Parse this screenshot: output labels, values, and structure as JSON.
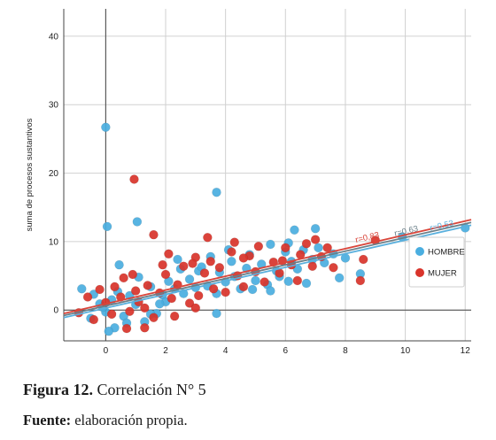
{
  "caption": {
    "figure_label": "Figura 12.",
    "figure_text": " Correlación N° 5",
    "source_label": "Fuente:",
    "source_text": " elaboración propia."
  },
  "colors": {
    "hombre": "#4aaee0",
    "mujer": "#d9342b",
    "hombre_line": "#5ab0dd",
    "mujer_line": "#d9453a",
    "grid": "#d0d0d0",
    "axis": "#444444"
  },
  "chart_data": {
    "type": "scatter",
    "title": "",
    "xlabel": "",
    "ylabel": "suma de procesos sustantivos",
    "xlim": [
      -1.4,
      12.2
    ],
    "ylim": [
      -4.5,
      44
    ],
    "x_ticks": [
      0,
      2,
      4,
      6,
      8,
      10,
      12
    ],
    "y_ticks": [
      0,
      10,
      20,
      30,
      40
    ],
    "grid": true,
    "legend_position": "right",
    "fit_lines": [
      {
        "series": "MUJER",
        "x": [
          -1.4,
          12.2
        ],
        "y": [
          -0.5,
          13.2
        ],
        "label": "r=0,83"
      },
      {
        "series": "ALL",
        "x": [
          -1.4,
          12.2
        ],
        "y": [
          -0.8,
          12.8
        ],
        "label": "r=0,63"
      },
      {
        "series": "HOMBRE",
        "x": [
          -1.4,
          12.2
        ],
        "y": [
          -1.1,
          12.4
        ],
        "label": "r=0,53"
      }
    ],
    "series": [
      {
        "name": "HOMBRE",
        "points": [
          [
            0.0,
            26.7
          ],
          [
            0.05,
            12.2
          ],
          [
            1.05,
            12.9
          ],
          [
            3.7,
            17.2
          ],
          [
            6.3,
            11.7
          ],
          [
            7.0,
            11.9
          ],
          [
            9.9,
            10.7
          ],
          [
            12.0,
            12.0
          ],
          [
            -0.8,
            3.1
          ],
          [
            -0.4,
            2.3
          ],
          [
            -0.2,
            0.9
          ],
          [
            0.0,
            -0.3
          ],
          [
            0.2,
            1.5
          ],
          [
            0.4,
            2.7
          ],
          [
            0.45,
            6.6
          ],
          [
            0.6,
            -0.9
          ],
          [
            0.8,
            2.1
          ],
          [
            1.0,
            0.8
          ],
          [
            1.1,
            4.8
          ],
          [
            1.3,
            -1.7
          ],
          [
            1.5,
            3.4
          ],
          [
            1.7,
            -0.5
          ],
          [
            1.9,
            2.2
          ],
          [
            2.1,
            4.2
          ],
          [
            2.3,
            3.1
          ],
          [
            2.5,
            6.0
          ],
          [
            2.6,
            2.4
          ],
          [
            2.8,
            4.5
          ],
          [
            3.0,
            3.3
          ],
          [
            3.1,
            5.7
          ],
          [
            3.4,
            3.5
          ],
          [
            3.5,
            7.8
          ],
          [
            3.7,
            2.4
          ],
          [
            3.8,
            5.5
          ],
          [
            4.0,
            4.1
          ],
          [
            4.2,
            7.1
          ],
          [
            4.3,
            4.9
          ],
          [
            4.5,
            3.1
          ],
          [
            4.7,
            6.1
          ],
          [
            4.8,
            8.1
          ],
          [
            5.0,
            4.3
          ],
          [
            5.2,
            6.7
          ],
          [
            5.4,
            3.7
          ],
          [
            5.5,
            9.6
          ],
          [
            5.7,
            5.7
          ],
          [
            5.8,
            4.9
          ],
          [
            6.0,
            8.5
          ],
          [
            6.1,
            4.2
          ],
          [
            6.2,
            7.1
          ],
          [
            6.4,
            6.0
          ],
          [
            6.6,
            8.8
          ],
          [
            6.7,
            3.9
          ],
          [
            6.9,
            7.4
          ],
          [
            7.1,
            9.1
          ],
          [
            7.3,
            6.9
          ],
          [
            7.6,
            8.2
          ],
          [
            7.8,
            4.7
          ],
          [
            8.0,
            7.6
          ],
          [
            8.5,
            5.3
          ],
          [
            -0.5,
            -1.2
          ],
          [
            0.3,
            -2.6
          ],
          [
            0.7,
            -1.9
          ],
          [
            1.5,
            -0.6
          ],
          [
            2.0,
            1.2
          ],
          [
            3.7,
            -0.5
          ],
          [
            4.9,
            3.0
          ],
          [
            5.5,
            2.8
          ],
          [
            6.1,
            9.8
          ],
          [
            2.4,
            7.4
          ],
          [
            3.2,
            6.3
          ],
          [
            4.1,
            8.8
          ],
          [
            0.1,
            -3.1
          ],
          [
            -0.1,
            0.4
          ],
          [
            1.8,
            0.9
          ]
        ]
      },
      {
        "name": "MUJER",
        "points": [
          [
            0.95,
            19.1
          ],
          [
            1.6,
            11.0
          ],
          [
            3.4,
            10.6
          ],
          [
            4.3,
            9.9
          ],
          [
            -0.6,
            1.9
          ],
          [
            -0.2,
            3.0
          ],
          [
            0.0,
            1.1
          ],
          [
            0.2,
            -0.6
          ],
          [
            0.3,
            3.4
          ],
          [
            0.5,
            1.9
          ],
          [
            0.6,
            4.7
          ],
          [
            0.8,
            -0.2
          ],
          [
            1.0,
            2.8
          ],
          [
            1.1,
            1.2
          ],
          [
            1.3,
            0.3
          ],
          [
            1.4,
            3.6
          ],
          [
            1.6,
            -1.1
          ],
          [
            1.8,
            2.5
          ],
          [
            2.0,
            5.2
          ],
          [
            2.1,
            8.2
          ],
          [
            2.2,
            1.7
          ],
          [
            2.4,
            3.7
          ],
          [
            2.6,
            6.4
          ],
          [
            2.8,
            1.0
          ],
          [
            3.0,
            7.7
          ],
          [
            3.1,
            2.1
          ],
          [
            3.3,
            5.4
          ],
          [
            3.5,
            7.1
          ],
          [
            3.6,
            3.1
          ],
          [
            3.8,
            6.2
          ],
          [
            4.0,
            2.6
          ],
          [
            4.2,
            8.5
          ],
          [
            4.4,
            5.0
          ],
          [
            4.6,
            3.4
          ],
          [
            4.8,
            7.9
          ],
          [
            5.0,
            5.6
          ],
          [
            5.1,
            9.3
          ],
          [
            5.3,
            4.1
          ],
          [
            5.6,
            7.0
          ],
          [
            5.8,
            5.4
          ],
          [
            6.0,
            9.1
          ],
          [
            6.2,
            6.6
          ],
          [
            6.4,
            4.3
          ],
          [
            6.5,
            8.1
          ],
          [
            6.7,
            9.7
          ],
          [
            6.9,
            6.4
          ],
          [
            7.0,
            10.3
          ],
          [
            7.2,
            7.8
          ],
          [
            7.4,
            9.1
          ],
          [
            7.6,
            6.2
          ],
          [
            8.5,
            4.3
          ],
          [
            8.6,
            7.4
          ],
          [
            9.0,
            10.2
          ],
          [
            -0.9,
            -0.4
          ],
          [
            -0.4,
            -1.4
          ],
          [
            0.7,
            -2.7
          ],
          [
            1.3,
            -2.6
          ],
          [
            2.3,
            -0.9
          ],
          [
            3.0,
            0.3
          ],
          [
            0.9,
            5.2
          ],
          [
            1.9,
            6.6
          ],
          [
            2.9,
            6.8
          ],
          [
            4.6,
            7.6
          ],
          [
            5.9,
            7.2
          ]
        ]
      }
    ]
  }
}
